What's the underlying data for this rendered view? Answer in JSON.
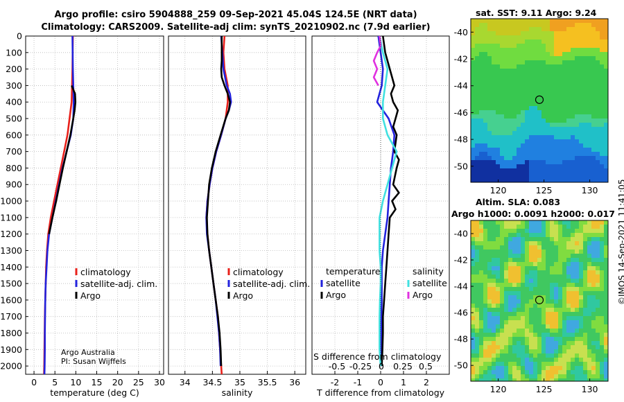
{
  "header": {
    "line1": "Argo profile: csiro 5904888_259 09-Sep-2021 45.04S 124.5E (NRT data)",
    "line2": "Climatology: CARS2009. Satellite-adj clim: synTS_20210902.nc (7.9d earlier)"
  },
  "credits": {
    "line1": "Argo Australia",
    "line2": "PI: Susan Wijffels"
  },
  "stamp": "©IMOS 14-Sep-2021 11:41:05",
  "colors": {
    "climatology": "#e8201a",
    "satellite": "#2222dd",
    "argo": "#000000",
    "sal_sat": "#40e0e0",
    "sal_argo": "#e030e0"
  },
  "chart_data": [
    {
      "type": "line",
      "panel": "temperature",
      "xlabel": "temperature (deg C)",
      "ylabel": "",
      "xlim": [
        -2,
        31
      ],
      "ylim": [
        2050,
        0
      ],
      "xticks": [
        0,
        5,
        10,
        15,
        20,
        25,
        30
      ],
      "yticks": [
        0,
        100,
        200,
        300,
        400,
        500,
        600,
        700,
        800,
        900,
        1000,
        1100,
        1200,
        1300,
        1400,
        1500,
        1600,
        1700,
        1800,
        1900,
        2000
      ],
      "legend": [
        "climatology",
        "satellite-adj. clim.",
        "Argo"
      ],
      "series": [
        {
          "name": "climatology",
          "depth": [
            0,
            200,
            400,
            600,
            700,
            800,
            900,
            1000,
            1100,
            1200,
            1300,
            1400,
            1500,
            1600,
            1700,
            1800,
            1900,
            2000,
            2050
          ],
          "values": [
            9.3,
            9.2,
            9.0,
            8.0,
            7.2,
            6.4,
            5.6,
            4.8,
            4.0,
            3.4,
            3.1,
            2.9,
            2.8,
            2.7,
            2.6,
            2.55,
            2.5,
            2.45,
            2.4
          ]
        },
        {
          "name": "satellite-adj. clim.",
          "depth": [
            0,
            200,
            300,
            400,
            500,
            600,
            700,
            800,
            900,
            1000,
            1100,
            1200,
            1300,
            1400,
            1500,
            1600,
            1700,
            1800,
            1900,
            2000,
            2050
          ],
          "values": [
            9.2,
            9.3,
            9.4,
            9.5,
            9.4,
            8.8,
            7.8,
            6.8,
            6.0,
            5.2,
            4.4,
            3.6,
            3.2,
            3.0,
            2.8,
            2.7,
            2.65,
            2.6,
            2.6,
            2.55,
            2.5
          ]
        },
        {
          "name": "Argo",
          "depth": [
            300,
            350,
            400,
            450,
            500,
            600,
            700,
            800,
            900,
            1000,
            1100,
            1200
          ],
          "values": [
            9.0,
            9.8,
            9.9,
            9.7,
            9.4,
            8.7,
            7.8,
            6.9,
            6.1,
            5.3,
            4.4,
            3.6
          ]
        }
      ]
    },
    {
      "type": "line",
      "panel": "salinity",
      "xlabel": "salinity",
      "xlim": [
        33.7,
        36.2
      ],
      "ylim": [
        2050,
        0
      ],
      "xticks": [
        34,
        34.5,
        35,
        35.5,
        36
      ],
      "legend": [
        "climatology",
        "satellite-adj. clim.",
        "Argo"
      ],
      "series": [
        {
          "name": "climatology",
          "depth": [
            0,
            100,
            200,
            300,
            400,
            500,
            600,
            700,
            800,
            900,
            1000,
            1100,
            1200,
            1300,
            1400,
            1500,
            1600,
            1700,
            1800,
            1900,
            2000,
            2050
          ],
          "values": [
            34.72,
            34.7,
            34.72,
            34.78,
            34.78,
            34.74,
            34.66,
            34.57,
            34.5,
            34.45,
            34.41,
            34.39,
            34.41,
            34.44,
            34.48,
            34.52,
            34.56,
            34.6,
            34.62,
            34.64,
            34.66,
            34.67
          ]
        },
        {
          "name": "satellite-adj. clim.",
          "depth": [
            0,
            100,
            200,
            300,
            350,
            400,
            450,
            500,
            600,
            700,
            800,
            900,
            1000,
            1100,
            1200,
            1300,
            1400,
            1500,
            1600,
            1700,
            1800,
            1900,
            2000
          ],
          "values": [
            34.66,
            34.68,
            34.7,
            34.76,
            34.82,
            34.84,
            34.8,
            34.74,
            34.66,
            34.57,
            34.5,
            34.45,
            34.41,
            34.39,
            34.4,
            34.44,
            34.48,
            34.52,
            34.56,
            34.59,
            34.62,
            34.64,
            34.65
          ]
        },
        {
          "name": "Argo",
          "depth": [
            0,
            100,
            150,
            200,
            250,
            300,
            350,
            400,
            450,
            500,
            600,
            700,
            800,
            900,
            1000,
            1100,
            1200,
            1300,
            1400,
            1500,
            1600,
            1700,
            1800,
            1900,
            2000
          ],
          "values": [
            34.67,
            34.67,
            34.67,
            34.66,
            34.67,
            34.72,
            34.78,
            34.82,
            34.8,
            34.74,
            34.65,
            34.56,
            34.49,
            34.44,
            34.42,
            34.4,
            34.41,
            34.44,
            34.48,
            34.52,
            34.56,
            34.6,
            34.63,
            34.65,
            34.66
          ]
        }
      ]
    },
    {
      "type": "line",
      "panel": "difference",
      "xlabel": "T difference from climatology",
      "toplabel": "S difference from climatology",
      "xlim": [
        -3,
        3
      ],
      "ylim": [
        2050,
        0
      ],
      "xticks": [
        -2,
        -1,
        0,
        1,
        2
      ],
      "sticks": [
        "-0.5",
        "-0.25",
        "0",
        "0.25",
        "0.5"
      ],
      "legend_t_title": "temperature",
      "legend_s_title": "salinity",
      "legend": [
        "satellite",
        "Argo",
        "satellite",
        "Argo"
      ],
      "series": [
        {
          "name": "temperature satellite",
          "depth": [
            0,
            100,
            200,
            300,
            400,
            500,
            600,
            700,
            800,
            900,
            1000,
            1100,
            1200,
            1300,
            1400,
            1500,
            1600,
            1700,
            1800,
            1900,
            2000
          ],
          "values": [
            -0.1,
            0.0,
            0.1,
            0.05,
            -0.15,
            0.35,
            0.6,
            0.55,
            0.45,
            0.4,
            0.35,
            0.3,
            0.2,
            0.1,
            0.05,
            0.05,
            0.05,
            0.03,
            0.02,
            0.02,
            0.05
          ]
        },
        {
          "name": "temperature Argo",
          "depth": [
            0,
            100,
            200,
            250,
            300,
            350,
            400,
            450,
            500,
            550,
            600,
            700,
            750,
            800,
            900,
            950,
            1000,
            1050,
            1100,
            1200,
            1300,
            1400,
            1500,
            1600,
            1700,
            1800,
            1900,
            2000
          ],
          "values": [
            0.1,
            0.2,
            0.4,
            0.5,
            0.6,
            0.45,
            0.55,
            0.75,
            0.65,
            0.55,
            0.7,
            0.6,
            0.8,
            0.7,
            0.55,
            0.8,
            0.5,
            0.65,
            0.4,
            0.35,
            0.3,
            0.25,
            0.2,
            0.15,
            0.1,
            0.1,
            0.08,
            0.05
          ]
        },
        {
          "name": "salinity satellite",
          "depth": [
            0,
            100,
            200,
            300,
            400,
            500,
            600,
            700,
            800,
            900,
            1000,
            1100,
            1200,
            1300,
            1400,
            1500,
            1600,
            1700,
            1800,
            1900,
            2000
          ],
          "values": [
            -0.05,
            0.1,
            0.3,
            0.2,
            0.1,
            0.1,
            0.3,
            0.7,
            0.5,
            0.3,
            0.1,
            -0.05,
            -0.05,
            -0.05,
            0.0,
            0.0,
            -0.03,
            -0.05,
            -0.05,
            -0.05,
            0.0
          ]
        },
        {
          "name": "salinity Argo",
          "depth": [
            0,
            60,
            100,
            150,
            200,
            250,
            300
          ],
          "values": [
            -0.05,
            0.0,
            -0.15,
            -0.3,
            -0.15,
            -0.3,
            -0.1
          ]
        }
      ]
    },
    {
      "type": "heatmap",
      "panel": "sst-map",
      "title": "sat. SST: 9.11 Argo: 9.24",
      "xticks": [
        120,
        125,
        130
      ],
      "yticks": [
        -40,
        -42,
        -44,
        -46,
        -48,
        -50
      ],
      "xlim": [
        117,
        132
      ],
      "ylim": [
        -51.2,
        -39
      ],
      "marker": [
        124.5,
        -45.04
      ]
    },
    {
      "type": "heatmap",
      "panel": "sla-map",
      "title": "Altim. SLA: 0.083",
      "subtitle": "Argo h1000: 0.0091 h2000: 0.017",
      "xticks": [
        120,
        125,
        130
      ],
      "yticks": [
        -40,
        -42,
        -44,
        -46,
        -48,
        -50
      ],
      "xlim": [
        117,
        132
      ],
      "ylim": [
        -51.2,
        -39
      ],
      "marker": [
        124.5,
        -45.04
      ]
    }
  ]
}
